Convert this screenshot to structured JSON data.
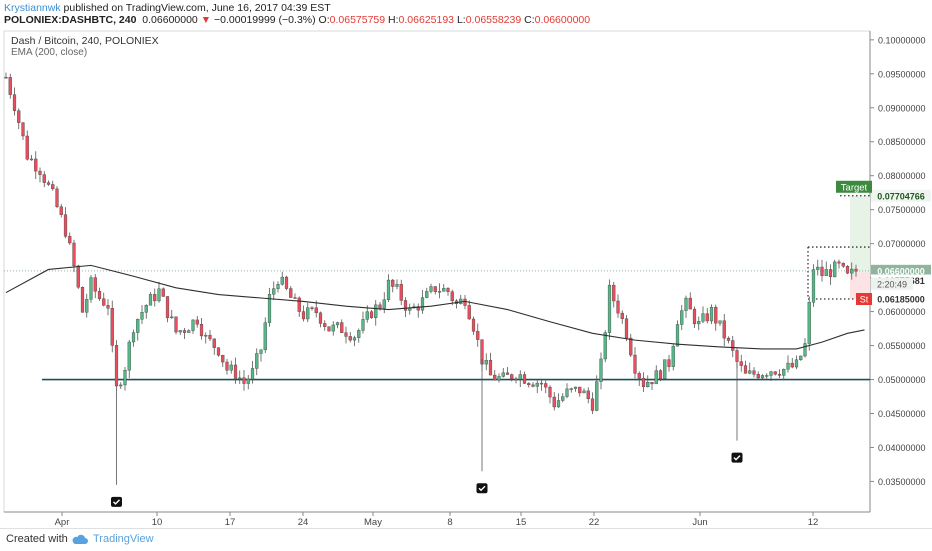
{
  "header": {
    "author": "Krystiannwk",
    "published": " published on TradingView.com, June 16, 2017 04:39 EST",
    "symbol": "POLONIEX:DASHBTC, 240",
    "last": "0.06600000",
    "change_arrow": "▼",
    "change": "−0.00019999 (−0.3%)",
    "o_label": "O:",
    "o_value": "0.06575759",
    "h_label": "H:",
    "h_value": "0.06625193",
    "l_label": "L:",
    "l_value": "0.06558239",
    "c_label": "C:",
    "c_value": "0.06600000"
  },
  "legend": {
    "title": "Dash / Bitcoin, 240, POLONIEX",
    "indicator": "EMA (200, close)"
  },
  "footer": {
    "created_with": "Created with",
    "brand": "TradingView"
  },
  "colors": {
    "up": "#53b987",
    "down": "#eb4d5c",
    "ema": "#2f2f2f",
    "support": "#1f4e5f",
    "target_box": "#3b8a3e",
    "stop_box": "#e53935",
    "last_price_box": "#8fb59e",
    "target_zone": "#e8f3e8",
    "stop_zone": "#fde3e3"
  },
  "chart_data": {
    "type": "candlestick",
    "title": "Dash / Bitcoin, 240, POLONIEX",
    "ylim": [
      0.0305,
      0.1013
    ],
    "y_ticks": [
      0.035,
      0.04,
      0.045,
      0.05,
      0.055,
      0.06,
      0.065,
      0.07,
      0.075,
      0.08,
      0.085,
      0.09,
      0.095,
      0.1
    ],
    "y_tick_labels": [
      "0.03500000",
      "0.04000000",
      "0.04500000",
      "0.05000000",
      "0.05500000",
      "0.06000000",
      "0.06500000",
      "0.07000000",
      "0.07500000",
      "0.08000000",
      "0.08500000",
      "0.09000000",
      "0.09500000",
      "0.10000000"
    ],
    "x_range_days": [
      -4.4,
      17.0
    ],
    "x_ticks": [
      {
        "label": "Apr",
        "day": 0
      },
      {
        "label": "10",
        "day": 9
      },
      {
        "label": "17",
        "day": 16
      },
      {
        "label": "24",
        "day": 23
      },
      {
        "label": "May",
        "day": 30
      },
      {
        "label": "8",
        "day": 37
      },
      {
        "label": "15",
        "day": 44
      },
      {
        "label": "22",
        "day": 51
      },
      {
        "label": "Jun",
        "day": 61
      },
      {
        "label": "12",
        "day": 72
      }
    ],
    "x_ticks_day_scale": "calendar days from 2017-04-01; tick spacing not uniform in pixels",
    "price_path": [
      [
        0,
        0.0945
      ],
      [
        2,
        0.0905
      ],
      [
        5,
        0.083
      ],
      [
        8,
        0.081
      ],
      [
        11,
        0.077
      ],
      [
        14,
        0.072
      ],
      [
        16,
        0.0665
      ],
      [
        18,
        0.06
      ],
      [
        20,
        0.064
      ],
      [
        22,
        0.062
      ],
      [
        24,
        0.061
      ],
      [
        25,
        0.054
      ],
      [
        26,
        0.0485
      ],
      [
        28,
        0.052
      ],
      [
        30,
        0.058
      ],
      [
        33,
        0.061
      ],
      [
        36,
        0.063
      ],
      [
        38,
        0.06
      ],
      [
        40,
        0.057
      ],
      [
        42,
        0.0575
      ],
      [
        45,
        0.059
      ],
      [
        47,
        0.056
      ],
      [
        50,
        0.0545
      ],
      [
        52,
        0.0515
      ],
      [
        54,
        0.051
      ],
      [
        56,
        0.0495
      ],
      [
        58,
        0.051
      ],
      [
        60,
        0.0545
      ],
      [
        62,
        0.062
      ],
      [
        64,
        0.065
      ],
      [
        66,
        0.063
      ],
      [
        68,
        0.061
      ],
      [
        70,
        0.0595
      ],
      [
        73,
        0.06
      ],
      [
        76,
        0.0575
      ],
      [
        79,
        0.0575
      ],
      [
        82,
        0.0565
      ],
      [
        84,
        0.058
      ],
      [
        86,
        0.06
      ],
      [
        88,
        0.061
      ],
      [
        90,
        0.064
      ],
      [
        92,
        0.063
      ],
      [
        95,
        0.06
      ],
      [
        98,
        0.0615
      ],
      [
        101,
        0.0635
      ],
      [
        104,
        0.063
      ],
      [
        106,
        0.061
      ],
      [
        108,
        0.062
      ],
      [
        110,
        0.058
      ],
      [
        112,
        0.053
      ],
      [
        114,
        0.0505
      ],
      [
        117,
        0.05
      ],
      [
        120,
        0.051
      ],
      [
        123,
        0.05
      ],
      [
        126,
        0.0495
      ],
      [
        129,
        0.0465
      ],
      [
        132,
        0.048
      ],
      [
        135,
        0.0485
      ],
      [
        138,
        0.0465
      ],
      [
        140,
        0.052
      ],
      [
        142,
        0.063
      ],
      [
        144,
        0.0605
      ],
      [
        146,
        0.057
      ],
      [
        148,
        0.052
      ],
      [
        150,
        0.0495
      ],
      [
        153,
        0.0505
      ],
      [
        156,
        0.0525
      ],
      [
        158,
        0.059
      ],
      [
        160,
        0.061
      ],
      [
        163,
        0.058
      ],
      [
        166,
        0.06
      ],
      [
        169,
        0.0565
      ],
      [
        172,
        0.0525
      ],
      [
        174,
        0.0505
      ],
      [
        177,
        0.051
      ],
      [
        180,
        0.0515
      ],
      [
        183,
        0.0515
      ],
      [
        186,
        0.052
      ],
      [
        188,
        0.055
      ],
      [
        190,
        0.0665
      ],
      [
        192,
        0.0655
      ],
      [
        194,
        0.066
      ],
      [
        196,
        0.0665
      ],
      [
        198,
        0.065
      ],
      [
        200,
        0.066
      ]
    ],
    "price_path_note": "x = 4-hour bar index (0..200), y = approximate close",
    "ema200_path": [
      [
        0,
        0.0628
      ],
      [
        10,
        0.0662
      ],
      [
        20,
        0.0668
      ],
      [
        30,
        0.0652
      ],
      [
        40,
        0.0635
      ],
      [
        50,
        0.0625
      ],
      [
        60,
        0.062
      ],
      [
        70,
        0.0615
      ],
      [
        80,
        0.0608
      ],
      [
        90,
        0.0603
      ],
      [
        100,
        0.0608
      ],
      [
        108,
        0.0615
      ],
      [
        118,
        0.0603
      ],
      [
        128,
        0.0585
      ],
      [
        138,
        0.0568
      ],
      [
        148,
        0.0558
      ],
      [
        158,
        0.0552
      ],
      [
        168,
        0.0548
      ],
      [
        178,
        0.0545
      ],
      [
        186,
        0.0545
      ],
      [
        192,
        0.0555
      ],
      [
        198,
        0.0568
      ],
      [
        202,
        0.0573
      ]
    ],
    "support_level": 0.05,
    "position": {
      "entry": 0.0657568,
      "target": 0.07704766,
      "stop": 0.06185,
      "last": 0.066,
      "upper_dotted": 0.0695,
      "target_label": "Target",
      "stop_label": "St",
      "countdown": "2:20:49"
    },
    "price_labels": {
      "last": "0.06600000",
      "entry": "0.06575681",
      "target": "0.07704766",
      "stop": "0.06185000"
    },
    "markers": [
      {
        "bar": 26,
        "value": 0.0345
      },
      {
        "bar": 112,
        "value": 0.0365
      },
      {
        "bar": 172,
        "value": 0.041
      }
    ]
  }
}
